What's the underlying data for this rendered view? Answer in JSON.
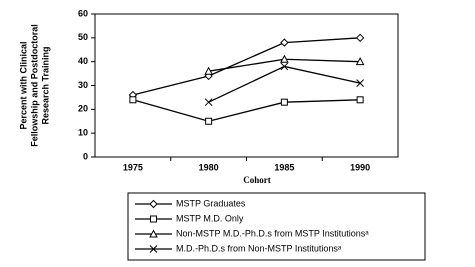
{
  "chart_data": {
    "type": "line",
    "ylabel": [
      "Percent with Clinical",
      "Fellowship and Postdoctoral",
      "Research Training"
    ],
    "xlabel": "Cohort",
    "categories": [
      "1975",
      "1980",
      "1985",
      "1990"
    ],
    "ylim": [
      0,
      60
    ],
    "yticks": [
      0,
      10,
      20,
      30,
      40,
      50,
      60
    ],
    "series": [
      {
        "name": "MSTP Graduates",
        "color": "#000000",
        "marker": "diamond",
        "values": [
          26,
          34,
          48,
          50
        ]
      },
      {
        "name": "MSTP M.D. Only",
        "color": "#000000",
        "marker": "square",
        "values": [
          24,
          15,
          23,
          24
        ]
      },
      {
        "name": "Non-MSTP M.D.-Ph.D.s from MSTP Institutionsᵃ",
        "color": "#000000",
        "marker": "triangle",
        "values": [
          null,
          36,
          41,
          40
        ]
      },
      {
        "name": "M.D.-Ph.D.s from Non-MSTP Institutionsᵃ",
        "color": "#000000",
        "marker": "x",
        "values": [
          null,
          23,
          38,
          31
        ]
      }
    ]
  }
}
